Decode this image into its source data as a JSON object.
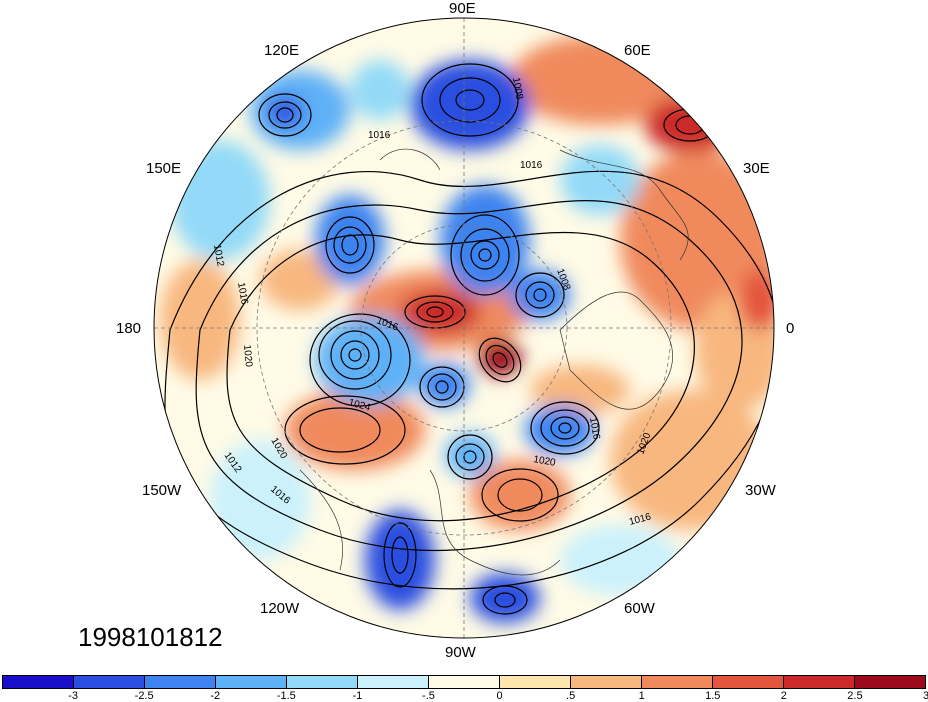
{
  "map": {
    "lon_labels": {
      "e90": "90E",
      "e120": "120E",
      "e60": "60E",
      "e150": "150E",
      "e30": "30E",
      "w180": "180",
      "e0": "0",
      "w150": "150W",
      "w30": "30W",
      "w120": "120W",
      "w60": "60W",
      "w90": "90W"
    },
    "isobar_labels": [
      "1008",
      "1016",
      "1016",
      "1008",
      "1012",
      "1016",
      "1020",
      "1016",
      "1024",
      "1020",
      "1012",
      "1016",
      "1016",
      "1020",
      "1020",
      "1016"
    ],
    "timestamp": "1998101812"
  },
  "colorbar": {
    "tick_labels": [
      "-3",
      "-2.5",
      "-2",
      "-1.5",
      "-1",
      "-.5",
      "0",
      ".5",
      "1",
      "1.5",
      "2",
      "2.5",
      "3"
    ],
    "colors": [
      "#1a0fc9",
      "#2b4fe0",
      "#3e83f0",
      "#5fb1f7",
      "#93daf8",
      "#cbf1fc",
      "#fffbe6",
      "#fde5ae",
      "#f8b77f",
      "#f08a5d",
      "#e4553d",
      "#cc2a2a",
      "#9c0a1c"
    ]
  },
  "colors": {
    "land_outline": "#333333",
    "isobar": "#000000",
    "background": "#ffffff"
  }
}
